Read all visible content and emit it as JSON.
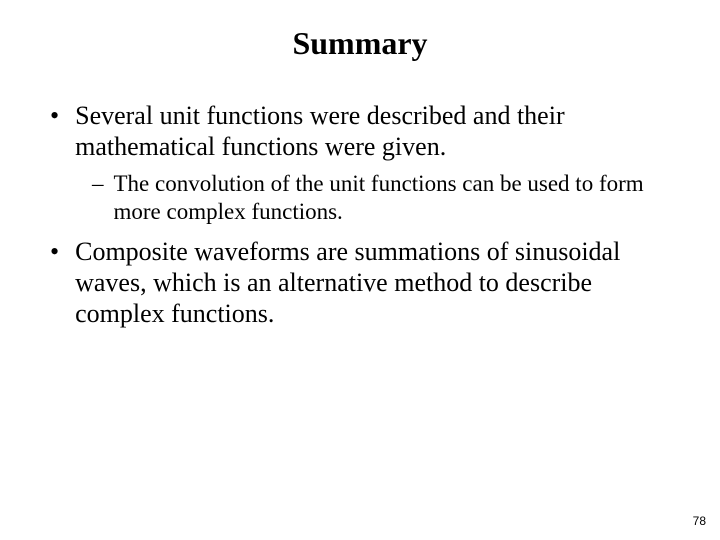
{
  "slide": {
    "title": "Summary",
    "bullets": [
      {
        "marker": "•",
        "text": "Several unit functions were described and their mathematical functions were given.",
        "sub": [
          {
            "marker": "–",
            "text": "The convolution of the unit functions can be used to form more complex functions."
          }
        ]
      },
      {
        "marker": "•",
        "text": "Composite waveforms are summations of sinusoidal waves, which is an alternative method to describe complex functions."
      }
    ],
    "page_number": "78"
  },
  "style": {
    "background_color": "#ffffff",
    "text_color": "#000000",
    "title_fontsize": 32,
    "body_fontsize": 26,
    "sub_fontsize": 23,
    "font_family": "Times New Roman"
  }
}
